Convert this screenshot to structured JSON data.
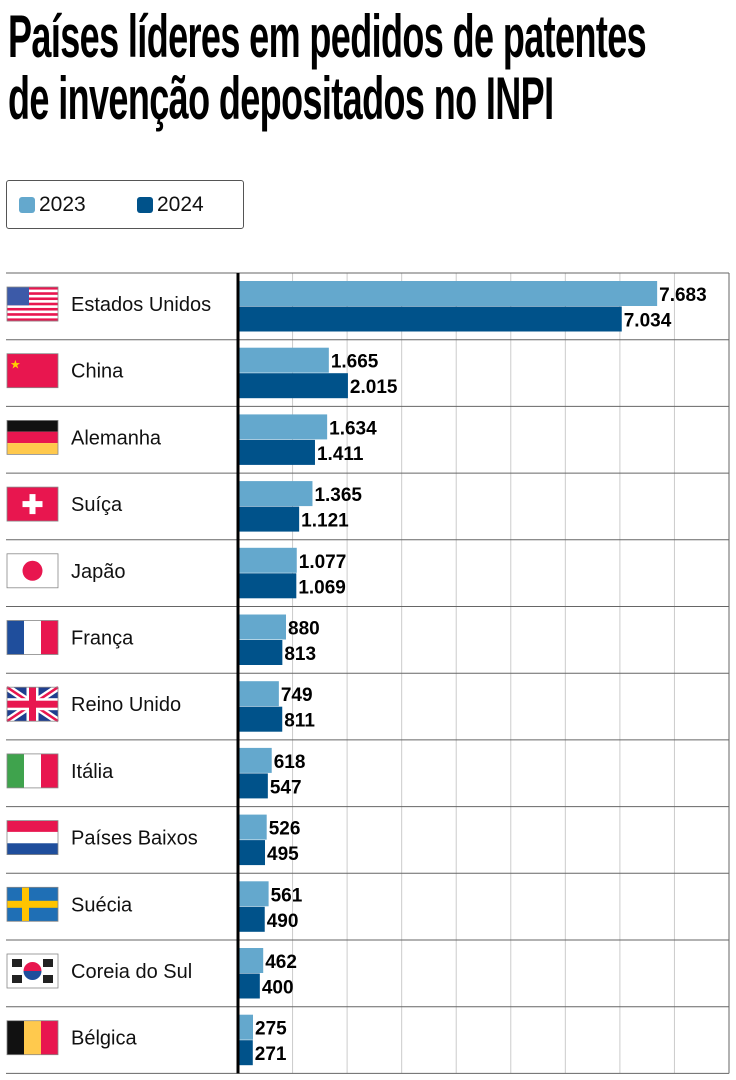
{
  "title": [
    "Países líderes em pedidos de patentes",
    "de invenção depositados no INPI"
  ],
  "colors": {
    "2023": "#64a8cd",
    "2024": "#00528a"
  },
  "chart_data": {
    "type": "bar",
    "orientation": "horizontal",
    "title": "Países líderes em pedidos de patentes de invenção depositados no INPI",
    "categories": [
      "Estados Unidos",
      "China",
      "Alemanha",
      "Suíça",
      "Japão",
      "França",
      "Reino Unido",
      "Itália",
      "Países Baixos",
      "Suécia",
      "Coreia do Sul",
      "Bélgica"
    ],
    "flags": [
      "flag-us-icon",
      "flag-cn-icon",
      "flag-de-icon",
      "flag-ch-icon",
      "flag-jp-icon",
      "flag-fr-icon",
      "flag-gb-icon",
      "flag-it-icon",
      "flag-nl-icon",
      "flag-se-icon",
      "flag-kr-icon",
      "flag-be-icon"
    ],
    "series": [
      {
        "name": "2023",
        "values": [
          7683,
          1665,
          1634,
          1365,
          1077,
          880,
          749,
          618,
          526,
          561,
          462,
          275
        ],
        "labels": [
          "7.683",
          "1.665",
          "1.634",
          "1.365",
          "1.077",
          "880",
          "749",
          "618",
          "526",
          "561",
          "462",
          "275"
        ]
      },
      {
        "name": "2024",
        "values": [
          7034,
          2015,
          1411,
          1121,
          1069,
          813,
          811,
          547,
          495,
          490,
          400,
          271
        ],
        "labels": [
          "7.034",
          "2.015",
          "1.411",
          "1.121",
          "1.069",
          "813",
          "811",
          "547",
          "495",
          "490",
          "400",
          "271"
        ]
      }
    ],
    "xlim": [
      0,
      9000
    ],
    "grid": true,
    "legend": "top-left"
  }
}
